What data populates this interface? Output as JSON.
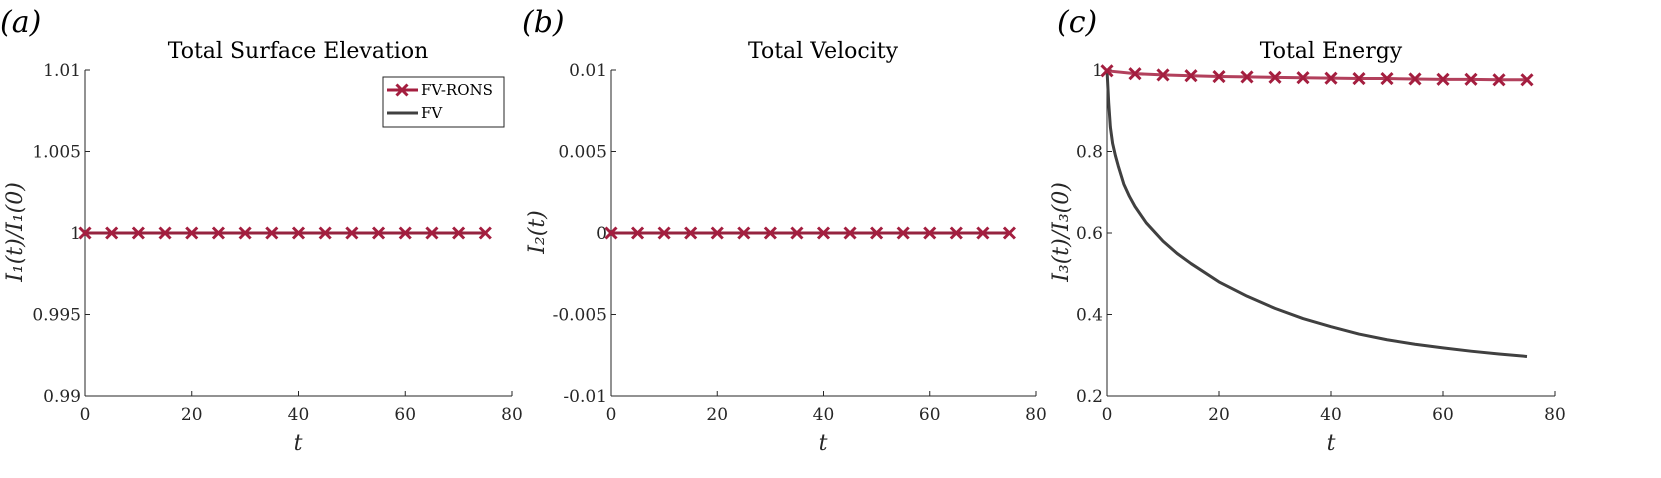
{
  "colors": {
    "fv_rons": "#a41e3f",
    "fv": "#404040",
    "axis": "#262626"
  },
  "legend": {
    "entries": [
      "FV-RONS",
      "FV"
    ]
  },
  "chart_data": [
    {
      "type": "line",
      "panel_label": "(a)",
      "title": "Total Surface Elevation",
      "xlabel": "t",
      "ylabel": "I₁(t)/I₁(0)",
      "xlim": [
        0,
        80
      ],
      "ylim": [
        0.99,
        1.01
      ],
      "xticks": [
        0,
        20,
        40,
        60,
        80
      ],
      "xtick_labels": [
        "0",
        "20",
        "40",
        "60",
        "80"
      ],
      "yticks": [
        0.99,
        0.995,
        1.0,
        1.005,
        1.01
      ],
      "ytick_labels": [
        "0.99",
        "0.995",
        "1",
        "1.005",
        "1.01"
      ],
      "legend": true,
      "series": [
        {
          "name": "FV",
          "style": "line",
          "x": [
            0,
            75
          ],
          "y": [
            1.0,
            1.0
          ]
        },
        {
          "name": "FV-RONS",
          "style": "line-x",
          "x": [
            0,
            5,
            10,
            15,
            20,
            25,
            30,
            35,
            40,
            45,
            50,
            55,
            60,
            65,
            70,
            75
          ],
          "y": [
            1,
            1,
            1,
            1,
            1,
            1,
            1,
            1,
            1,
            1,
            1,
            1,
            1,
            1,
            1,
            1
          ]
        }
      ]
    },
    {
      "type": "line",
      "panel_label": "(b)",
      "title": "Total Velocity",
      "xlabel": "t",
      "ylabel": "I₂(t)",
      "xlim": [
        0,
        80
      ],
      "ylim": [
        -0.01,
        0.01
      ],
      "xticks": [
        0,
        20,
        40,
        60,
        80
      ],
      "xtick_labels": [
        "0",
        "20",
        "40",
        "60",
        "80"
      ],
      "yticks": [
        -0.01,
        -0.005,
        0,
        0.005,
        0.01
      ],
      "ytick_labels": [
        "-0.01",
        "-0.005",
        "0",
        "0.005",
        "0.01"
      ],
      "legend": false,
      "series": [
        {
          "name": "FV",
          "style": "line",
          "x": [
            0,
            75
          ],
          "y": [
            0,
            0
          ]
        },
        {
          "name": "FV-RONS",
          "style": "line-x",
          "x": [
            0,
            5,
            10,
            15,
            20,
            25,
            30,
            35,
            40,
            45,
            50,
            55,
            60,
            65,
            70,
            75
          ],
          "y": [
            0,
            0,
            0,
            0,
            0,
            0,
            0,
            0,
            0,
            0,
            0,
            0,
            0,
            0,
            0,
            0
          ]
        }
      ]
    },
    {
      "type": "line",
      "panel_label": "(c)",
      "title": "Total Energy",
      "xlabel": "t",
      "ylabel": "I₃(t)/I₃(0)",
      "xlim": [
        0,
        80
      ],
      "ylim": [
        0.2,
        1.0
      ],
      "xticks": [
        0,
        20,
        40,
        60,
        80
      ],
      "xtick_labels": [
        "0",
        "20",
        "40",
        "60",
        "80"
      ],
      "yticks": [
        0.2,
        0.4,
        0.6,
        0.8,
        1.0
      ],
      "ytick_labels": [
        "0.2",
        "0.4",
        "0.6",
        "0.8",
        "1"
      ],
      "legend": false,
      "series": [
        {
          "name": "FV",
          "style": "line",
          "x": [
            0,
            0.3,
            0.6,
            1,
            1.5,
            2,
            3,
            4,
            5,
            7,
            10,
            12.5,
            15,
            20,
            25,
            30,
            35,
            40,
            45,
            50,
            55,
            60,
            65,
            70,
            75
          ],
          "y": [
            1.0,
            0.92,
            0.86,
            0.82,
            0.79,
            0.765,
            0.72,
            0.69,
            0.665,
            0.625,
            0.58,
            0.55,
            0.525,
            0.48,
            0.445,
            0.415,
            0.39,
            0.37,
            0.352,
            0.338,
            0.327,
            0.318,
            0.31,
            0.303,
            0.297
          ]
        },
        {
          "name": "FV-RONS",
          "style": "line-x",
          "x": [
            0,
            5,
            10,
            15,
            20,
            25,
            30,
            35,
            40,
            45,
            50,
            55,
            60,
            65,
            70,
            75
          ],
          "y": [
            0.998,
            0.991,
            0.988,
            0.986,
            0.984,
            0.983,
            0.982,
            0.981,
            0.98,
            0.979,
            0.979,
            0.978,
            0.977,
            0.977,
            0.976,
            0.976
          ]
        }
      ]
    }
  ]
}
